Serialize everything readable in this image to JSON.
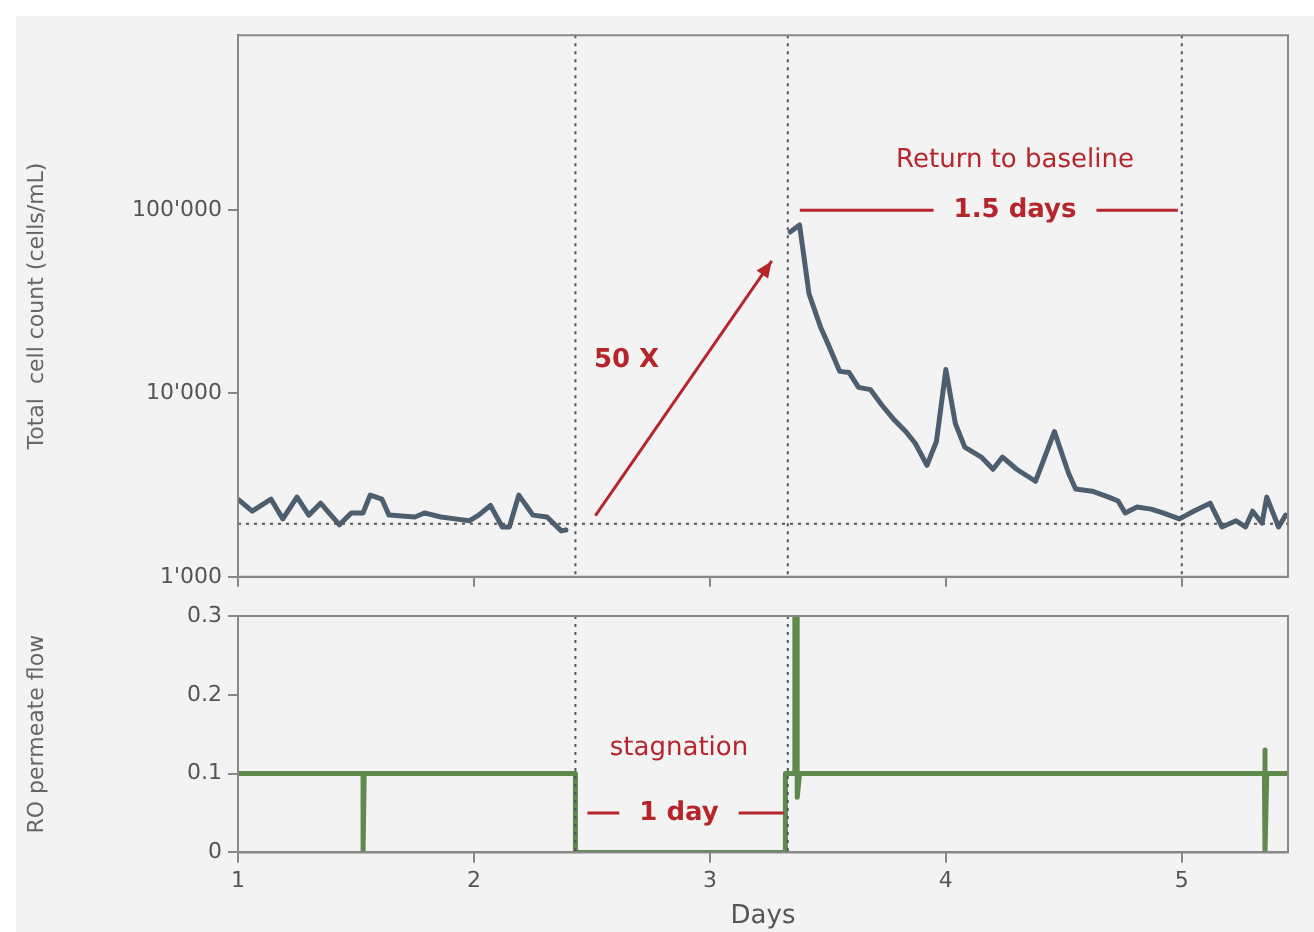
{
  "chart_data": [
    {
      "type": "line",
      "ylabel": "Total  cell count (cells/mL)",
      "log": "y",
      "xlim": [
        1,
        5.45
      ],
      "xticks": [
        1,
        2,
        3,
        4,
        5
      ],
      "ylim": [
        1000,
        900000
      ],
      "yticks": [
        {
          "value": 1000,
          "label": "1'000"
        },
        {
          "value": 10000,
          "label": "10'000"
        },
        {
          "value": 100000,
          "label": "100'000"
        }
      ],
      "tick_labels": "y",
      "grid": false,
      "legend": false,
      "marker": "none",
      "line_style": "solid",
      "series": [
        {
          "color": "#4d5e6e",
          "x": [
            1.0,
            1.06,
            1.14,
            1.19,
            1.25,
            1.3,
            1.35,
            1.43,
            1.48,
            1.53,
            1.56,
            1.61,
            1.64,
            1.75,
            1.79,
            1.86,
            1.92,
            1.98,
            2.02,
            2.07,
            2.12,
            2.15,
            2.19,
            2.25,
            2.31,
            2.37,
            2.39,
            2.41,
            3.34,
            3.38,
            3.42,
            3.47,
            3.5,
            3.55,
            3.59,
            3.63,
            3.68,
            3.73,
            3.78,
            3.83,
            3.87,
            3.92,
            3.96,
            4.0,
            4.04,
            4.08,
            4.15,
            4.2,
            4.24,
            4.3,
            4.38,
            4.46,
            4.52,
            4.55,
            4.62,
            4.69,
            4.73,
            4.76,
            4.81,
            4.87,
            4.92,
            4.99,
            5.05,
            5.12,
            5.17,
            5.23,
            5.27,
            5.3,
            5.34,
            5.36,
            5.41,
            5.44
          ],
          "values": [
            2650,
            2280,
            2650,
            2070,
            2720,
            2170,
            2520,
            1920,
            2230,
            2230,
            2790,
            2650,
            2170,
            2120,
            2230,
            2120,
            2070,
            2020,
            2170,
            2450,
            1870,
            1870,
            2790,
            2170,
            2120,
            1780,
            1800,
            null,
            76000,
            83000,
            35000,
            22800,
            18700,
            13200,
            13000,
            10800,
            10500,
            8600,
            7200,
            6200,
            5350,
            4060,
            5470,
            13500,
            6870,
            5100,
            4500,
            3860,
            4500,
            3860,
            3320,
            6200,
            3670,
            3010,
            2930,
            2720,
            2590,
            2230,
            2400,
            2340,
            2230,
            2070,
            2280,
            2520,
            1870,
            2020,
            1870,
            2280,
            1960,
            2720,
            1870,
            2170
          ]
        }
      ],
      "ref_lines": [
        {
          "axis": "x",
          "value": 2.43,
          "color": "#555555",
          "line_style": "dotted"
        },
        {
          "axis": "x",
          "value": 3.33,
          "color": "#555555",
          "line_style": "dotted"
        },
        {
          "axis": "x",
          "value": 5.0,
          "color": "#555555",
          "line_style": "dotted"
        },
        {
          "axis": "y",
          "value": 1950,
          "color": "#555555",
          "line_style": "dotted"
        }
      ],
      "annotations": [
        "50 X",
        "Return to baseline",
        {
          "text": "1.5 days",
          "x": 5.0,
          "y": 100000
        }
      ]
    },
    {
      "type": "line",
      "xlabel": "Days",
      "ylabel": "RO permeate flow",
      "xlim": [
        1,
        5.45
      ],
      "xticks": [
        1,
        2,
        3,
        4,
        5
      ],
      "ylim": [
        0,
        0.3
      ],
      "yticks": [
        0,
        0.1,
        0.2,
        0.3
      ],
      "grid": false,
      "legend": false,
      "marker": "none",
      "line_style": "solid",
      "series": [
        {
          "color": "#5e8a4e",
          "x": [
            1.0,
            1.53,
            1.53,
            1.535,
            2.43,
            2.43,
            3.32,
            3.32,
            3.36,
            3.36,
            3.37,
            3.37,
            3.38,
            5.35,
            5.35,
            5.355,
            5.36,
            5.45
          ],
          "values": [
            0.1,
            0.1,
            0,
            0.1,
            0.1,
            0,
            0,
            0.1,
            0.1,
            0.3,
            0.3,
            0.07,
            0.1,
            0.1,
            0.13,
            0,
            0.1,
            0.1
          ]
        }
      ],
      "ref_lines": [
        {
          "axis": "x",
          "value": 2.43,
          "color": "#555555",
          "line_style": "dotted"
        },
        {
          "axis": "x",
          "value": 3.33,
          "color": "#555555",
          "line_style": "dotted"
        }
      ],
      "annotations": [
        "stagnation",
        {
          "text": "1 day",
          "x": 3.33,
          "y": 0.05
        }
      ]
    }
  ]
}
